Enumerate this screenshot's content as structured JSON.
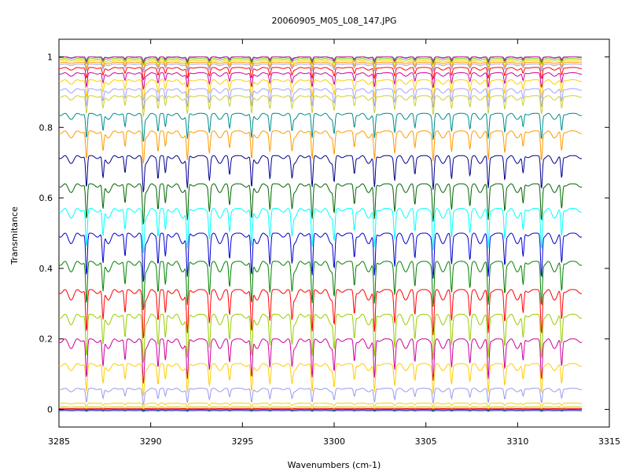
{
  "chart_data": {
    "type": "line",
    "title": "20060905_M05_L08_147.JPG",
    "xlabel": "Wavenumbers (cm-1)",
    "ylabel": "Transmitance",
    "xlim": [
      3285,
      3315
    ],
    "ylim": [
      -0.05,
      1.05
    ],
    "x_ticks": [
      3285,
      3290,
      3295,
      3300,
      3305,
      3310,
      3315
    ],
    "x_tick_labels": [
      "3285",
      "3290",
      "3295",
      "3300",
      "3305",
      "3310",
      "3315"
    ],
    "y_ticks": [
      0,
      0.2,
      0.4,
      0.6,
      0.8,
      1
    ],
    "y_tick_labels": [
      "0",
      "0.2",
      "0.4",
      "0.6",
      "0.8",
      "1"
    ],
    "x_data_range": [
      3285,
      3313.5
    ],
    "grid": false,
    "legend": "none",
    "absorption_lines": [
      3286.5,
      3287.4,
      3288.6,
      3289.6,
      3290.4,
      3290.8,
      3292.0,
      3293.2,
      3294.3,
      3295.5,
      3296.5,
      3297.7,
      3298.8,
      3300.0,
      3301.1,
      3302.2,
      3303.3,
      3304.4,
      3305.4,
      3306.4,
      3307.4,
      3308.4,
      3309.3,
      3310.3,
      3311.3,
      3312.4
    ],
    "series": [
      {
        "color": "#008000",
        "baseline": 1.0,
        "depth": 0.01
      },
      {
        "color": "#0000cd",
        "baseline": 1.0,
        "depth": 0.01
      },
      {
        "color": "#ff0000",
        "baseline": 1.0,
        "depth": 0.012
      },
      {
        "color": "#00ced1",
        "baseline": 1.0,
        "depth": 0.012
      },
      {
        "color": "#cc0099",
        "baseline": 1.0,
        "depth": 0.015
      },
      {
        "color": "#66cc00",
        "baseline": 0.995,
        "depth": 0.015
      },
      {
        "color": "#ffcc00",
        "baseline": 0.99,
        "depth": 0.02
      },
      {
        "color": "#ff9900",
        "baseline": 0.985,
        "depth": 0.02
      },
      {
        "color": "#a0a0ff",
        "baseline": 0.98,
        "depth": 0.02
      },
      {
        "color": "#ff0000",
        "baseline": 0.97,
        "depth": 0.03
      },
      {
        "color": "#cc0099",
        "baseline": 0.955,
        "depth": 0.04
      },
      {
        "color": "#ffcc00",
        "baseline": 0.935,
        "depth": 0.05
      },
      {
        "color": "#a0a0ff",
        "baseline": 0.91,
        "depth": 0.05
      },
      {
        "color": "#cccc33",
        "baseline": 0.89,
        "depth": 0.05
      },
      {
        "color": "#008b8b",
        "baseline": 0.84,
        "depth": 0.07
      },
      {
        "color": "#ff9900",
        "baseline": 0.79,
        "depth": 0.08
      },
      {
        "color": "#00008b",
        "baseline": 0.72,
        "depth": 0.09
      },
      {
        "color": "#006400",
        "baseline": 0.64,
        "depth": 0.1
      },
      {
        "color": "#00ffff",
        "baseline": 0.57,
        "depth": 0.11
      },
      {
        "color": "#0000cd",
        "baseline": 0.5,
        "depth": 0.12
      },
      {
        "color": "#008000",
        "baseline": 0.42,
        "depth": 0.12
      },
      {
        "color": "#ff0000",
        "baseline": 0.34,
        "depth": 0.12
      },
      {
        "color": "#99cc00",
        "baseline": 0.27,
        "depth": 0.12
      },
      {
        "color": "#cc0099",
        "baseline": 0.2,
        "depth": 0.11
      },
      {
        "color": "#ffcc00",
        "baseline": 0.13,
        "depth": 0.08
      },
      {
        "color": "#9999ee",
        "baseline": 0.06,
        "depth": 0.04
      },
      {
        "color": "#ffcc00",
        "baseline": 0.018,
        "depth": 0.01
      },
      {
        "color": "#cccc33",
        "baseline": 0.008,
        "depth": 0.006
      },
      {
        "color": "#ff0000",
        "baseline": 0.003,
        "depth": 0.003
      },
      {
        "color": "#008000",
        "baseline": 0.0,
        "depth": 0.002
      },
      {
        "color": "#0000cd",
        "baseline": -0.003,
        "depth": 0.002
      }
    ]
  }
}
